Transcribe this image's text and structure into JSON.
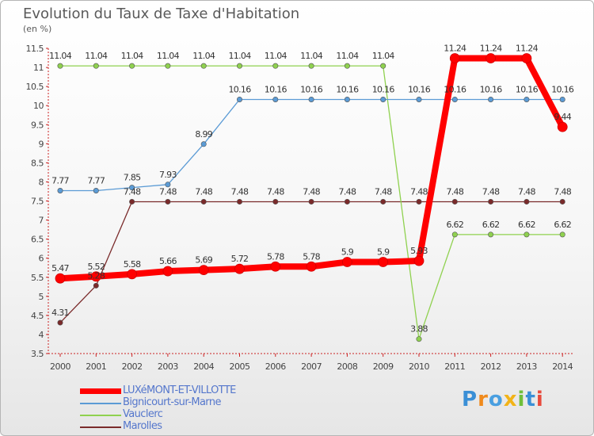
{
  "header": {
    "title": "Evolution du Taux de Taxe d'Habitation",
    "subtitle": "(en %)"
  },
  "brand": {
    "letters": [
      "P",
      "r",
      "o",
      "x",
      "i",
      "t",
      "i"
    ],
    "colors": [
      "#3a8fd6",
      "#f08a1c",
      "#4a9fe0",
      "#f2b318",
      "#6fbf3a",
      "#3a8fd6",
      "#e84a3c"
    ]
  },
  "chart_data": {
    "type": "line",
    "title": "Evolution du Taux de Taxe d'Habitation",
    "subtitle": "(en %)",
    "xlabel": "",
    "ylabel": "(en %)",
    "categories": [
      "2000",
      "2001",
      "2002",
      "2003",
      "2004",
      "2005",
      "2006",
      "2007",
      "2008",
      "2009",
      "2010",
      "2011",
      "2012",
      "2013",
      "2014"
    ],
    "ylim": [
      3.5,
      11.5
    ],
    "yticks": [
      "3.5",
      "4",
      "4.5",
      "5",
      "5.5",
      "6",
      "6.5",
      "7",
      "7.5",
      "8",
      "8.5",
      "9",
      "9.5",
      "10",
      "10.5",
      "11",
      "11.5"
    ],
    "grid": false,
    "legend_position": "bottom-left",
    "series": [
      {
        "name": "LUXéMONT-ET-VILLOTTE",
        "color": "#ff0000",
        "values": [
          5.47,
          5.52,
          5.58,
          5.66,
          5.69,
          5.72,
          5.78,
          5.78,
          5.9,
          5.9,
          5.93,
          11.24,
          11.24,
          11.24,
          9.44
        ],
        "labels": [
          "5.47",
          "5.52",
          "5.58",
          "5.66",
          "5.69",
          "5.72",
          "5.78",
          "5.78",
          "5.9",
          "5.9",
          "5.93",
          "11.24",
          "11.24",
          "11.24",
          "9.44"
        ]
      },
      {
        "name": "Bignicourt-sur-Marne",
        "color": "#5b9bd5",
        "values": [
          7.77,
          7.77,
          7.85,
          7.93,
          8.99,
          10.16,
          10.16,
          10.16,
          10.16,
          10.16,
          10.16,
          10.16,
          10.16,
          10.16,
          10.16
        ],
        "labels": [
          "7.77",
          "7.77",
          "7.85",
          "7.93",
          "8.99",
          "10.16",
          "10.16",
          "10.16",
          "10.16",
          "10.16",
          "10.16",
          "10.16",
          "10.16",
          "10.16",
          "10.16"
        ]
      },
      {
        "name": "Vauclerc",
        "color": "#8fd14f",
        "values": [
          11.04,
          11.04,
          11.04,
          11.04,
          11.04,
          11.04,
          11.04,
          11.04,
          11.04,
          11.04,
          3.88,
          6.62,
          6.62,
          6.62,
          6.62
        ],
        "labels": [
          "11.04",
          "11.04",
          "11.04",
          "11.04",
          "11.04",
          "11.04",
          "11.04",
          "11.04",
          "11.04",
          "11.04",
          "3.88",
          "6.62",
          "6.62",
          "6.62",
          "6.62"
        ]
      },
      {
        "name": "Marolles",
        "color": "#7a2a2a",
        "values": [
          4.31,
          5.28,
          7.48,
          7.48,
          7.48,
          7.48,
          7.48,
          7.48,
          7.48,
          7.48,
          7.48,
          7.48,
          7.48,
          7.48,
          7.48
        ],
        "labels": [
          "4.31",
          "5.28",
          "7.48",
          "7.48",
          "7.48",
          "7.48",
          "7.48",
          "7.48",
          "7.48",
          "7.48",
          "7.48",
          "7.48",
          "7.48",
          "7.48",
          "7.48"
        ]
      }
    ]
  }
}
